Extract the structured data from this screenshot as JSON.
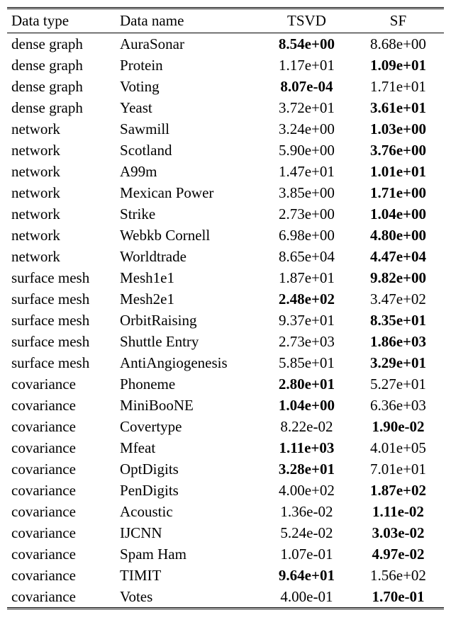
{
  "columns": {
    "col1": "Data type",
    "col2": "Data name",
    "col3": "TSVD",
    "col4": "SF"
  },
  "rows": [
    {
      "type": "dense graph",
      "name": "AuraSonar",
      "tsvd": "8.54e+00",
      "sf": "8.68e+00",
      "tsvd_bold": true,
      "sf_bold": false
    },
    {
      "type": "dense graph",
      "name": "Protein",
      "tsvd": "1.17e+01",
      "sf": "1.09e+01",
      "tsvd_bold": false,
      "sf_bold": true
    },
    {
      "type": "dense graph",
      "name": "Voting",
      "tsvd": "8.07e-04",
      "sf": "1.71e+01",
      "tsvd_bold": true,
      "sf_bold": false
    },
    {
      "type": "dense graph",
      "name": "Yeast",
      "tsvd": "3.72e+01",
      "sf": "3.61e+01",
      "tsvd_bold": false,
      "sf_bold": true
    },
    {
      "type": "network",
      "name": "Sawmill",
      "tsvd": "3.24e+00",
      "sf": "1.03e+00",
      "tsvd_bold": false,
      "sf_bold": true
    },
    {
      "type": "network",
      "name": "Scotland",
      "tsvd": "5.90e+00",
      "sf": "3.76e+00",
      "tsvd_bold": false,
      "sf_bold": true
    },
    {
      "type": "network",
      "name": "A99m",
      "tsvd": "1.47e+01",
      "sf": "1.01e+01",
      "tsvd_bold": false,
      "sf_bold": true
    },
    {
      "type": "network",
      "name": "Mexican Power",
      "tsvd": "3.85e+00",
      "sf": "1.71e+00",
      "tsvd_bold": false,
      "sf_bold": true
    },
    {
      "type": "network",
      "name": "Strike",
      "tsvd": "2.73e+00",
      "sf": "1.04e+00",
      "tsvd_bold": false,
      "sf_bold": true
    },
    {
      "type": "network",
      "name": "Webkb Cornell",
      "tsvd": "6.98e+00",
      "sf": "4.80e+00",
      "tsvd_bold": false,
      "sf_bold": true
    },
    {
      "type": "network",
      "name": "Worldtrade",
      "tsvd": "8.65e+04",
      "sf": "4.47e+04",
      "tsvd_bold": false,
      "sf_bold": true
    },
    {
      "type": "surface mesh",
      "name": "Mesh1e1",
      "tsvd": "1.87e+01",
      "sf": "9.82e+00",
      "tsvd_bold": false,
      "sf_bold": true
    },
    {
      "type": "surface mesh",
      "name": "Mesh2e1",
      "tsvd": "2.48e+02",
      "sf": "3.47e+02",
      "tsvd_bold": true,
      "sf_bold": false
    },
    {
      "type": "surface mesh",
      "name": "OrbitRaising",
      "tsvd": "9.37e+01",
      "sf": "8.35e+01",
      "tsvd_bold": false,
      "sf_bold": true
    },
    {
      "type": "surface mesh",
      "name": "Shuttle Entry",
      "tsvd": "2.73e+03",
      "sf": "1.86e+03",
      "tsvd_bold": false,
      "sf_bold": true
    },
    {
      "type": "surface mesh",
      "name": "AntiAngiogenesis",
      "tsvd": "5.85e+01",
      "sf": "3.29e+01",
      "tsvd_bold": false,
      "sf_bold": true
    },
    {
      "type": "covariance",
      "name": "Phoneme",
      "tsvd": "2.80e+01",
      "sf": "5.27e+01",
      "tsvd_bold": true,
      "sf_bold": false
    },
    {
      "type": "covariance",
      "name": "MiniBooNE",
      "tsvd": "1.04e+00",
      "sf": "6.36e+03",
      "tsvd_bold": true,
      "sf_bold": false
    },
    {
      "type": "covariance",
      "name": "Covertype",
      "tsvd": "8.22e-02",
      "sf": "1.90e-02",
      "tsvd_bold": false,
      "sf_bold": true
    },
    {
      "type": "covariance",
      "name": "Mfeat",
      "tsvd": "1.11e+03",
      "sf": "4.01e+05",
      "tsvd_bold": true,
      "sf_bold": false
    },
    {
      "type": "covariance",
      "name": "OptDigits",
      "tsvd": "3.28e+01",
      "sf": "7.01e+01",
      "tsvd_bold": true,
      "sf_bold": false
    },
    {
      "type": "covariance",
      "name": "PenDigits",
      "tsvd": "4.00e+02",
      "sf": "1.87e+02",
      "tsvd_bold": false,
      "sf_bold": true
    },
    {
      "type": "covariance",
      "name": "Acoustic",
      "tsvd": "1.36e-02",
      "sf": "1.11e-02",
      "tsvd_bold": false,
      "sf_bold": true
    },
    {
      "type": "covariance",
      "name": "IJCNN",
      "tsvd": "5.24e-02",
      "sf": "3.03e-02",
      "tsvd_bold": false,
      "sf_bold": true
    },
    {
      "type": "covariance",
      "name": "Spam Ham",
      "tsvd": "1.07e-01",
      "sf": "4.97e-02",
      "tsvd_bold": false,
      "sf_bold": true
    },
    {
      "type": "covariance",
      "name": "TIMIT",
      "tsvd": "9.64e+01",
      "sf": "1.56e+02",
      "tsvd_bold": true,
      "sf_bold": false
    },
    {
      "type": "covariance",
      "name": "Votes",
      "tsvd": "4.00e-01",
      "sf": "1.70e-01",
      "tsvd_bold": false,
      "sf_bold": true
    }
  ]
}
